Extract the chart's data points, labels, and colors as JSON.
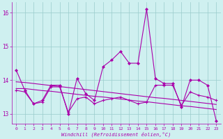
{
  "xlabel": "Windchill (Refroidissement éolien,°C)",
  "bg_color": "#cff0f0",
  "line_color": "#aa00aa",
  "grid_color": "#99cccc",
  "xlim": [
    -0.5,
    23.5
  ],
  "ylim": [
    12.7,
    16.3
  ],
  "yticks": [
    13,
    14,
    15,
    16
  ],
  "xticks": [
    0,
    1,
    2,
    3,
    4,
    5,
    6,
    7,
    8,
    9,
    10,
    11,
    12,
    13,
    14,
    15,
    16,
    17,
    18,
    19,
    20,
    21,
    22,
    23
  ],
  "series1": [
    14.3,
    13.7,
    13.3,
    13.4,
    13.85,
    13.85,
    13.0,
    14.05,
    13.6,
    13.4,
    14.4,
    14.6,
    14.85,
    14.5,
    14.5,
    16.1,
    14.05,
    13.9,
    13.9,
    13.2,
    14.0,
    14.0,
    13.85,
    12.8
  ],
  "series2": [
    13.7,
    13.65,
    13.3,
    13.35,
    13.8,
    13.8,
    13.05,
    13.45,
    13.5,
    13.3,
    13.4,
    13.45,
    13.5,
    13.4,
    13.3,
    13.35,
    13.85,
    13.85,
    13.85,
    13.25,
    13.65,
    13.55,
    13.5,
    13.4
  ],
  "trend1": [
    13.75,
    13.75,
    13.72,
    13.69,
    13.67,
    13.64,
    13.61,
    13.58,
    13.55,
    13.52,
    13.5,
    13.47,
    13.44,
    13.41,
    13.38,
    13.36,
    13.33,
    13.3,
    13.27,
    13.24,
    13.22,
    13.19,
    13.16,
    13.13
  ],
  "trend2": [
    13.95,
    13.93,
    13.9,
    13.87,
    13.84,
    13.81,
    13.78,
    13.75,
    13.72,
    13.69,
    13.66,
    13.63,
    13.6,
    13.57,
    13.54,
    13.51,
    13.48,
    13.46,
    13.43,
    13.4,
    13.37,
    13.34,
    13.31,
    13.28
  ]
}
